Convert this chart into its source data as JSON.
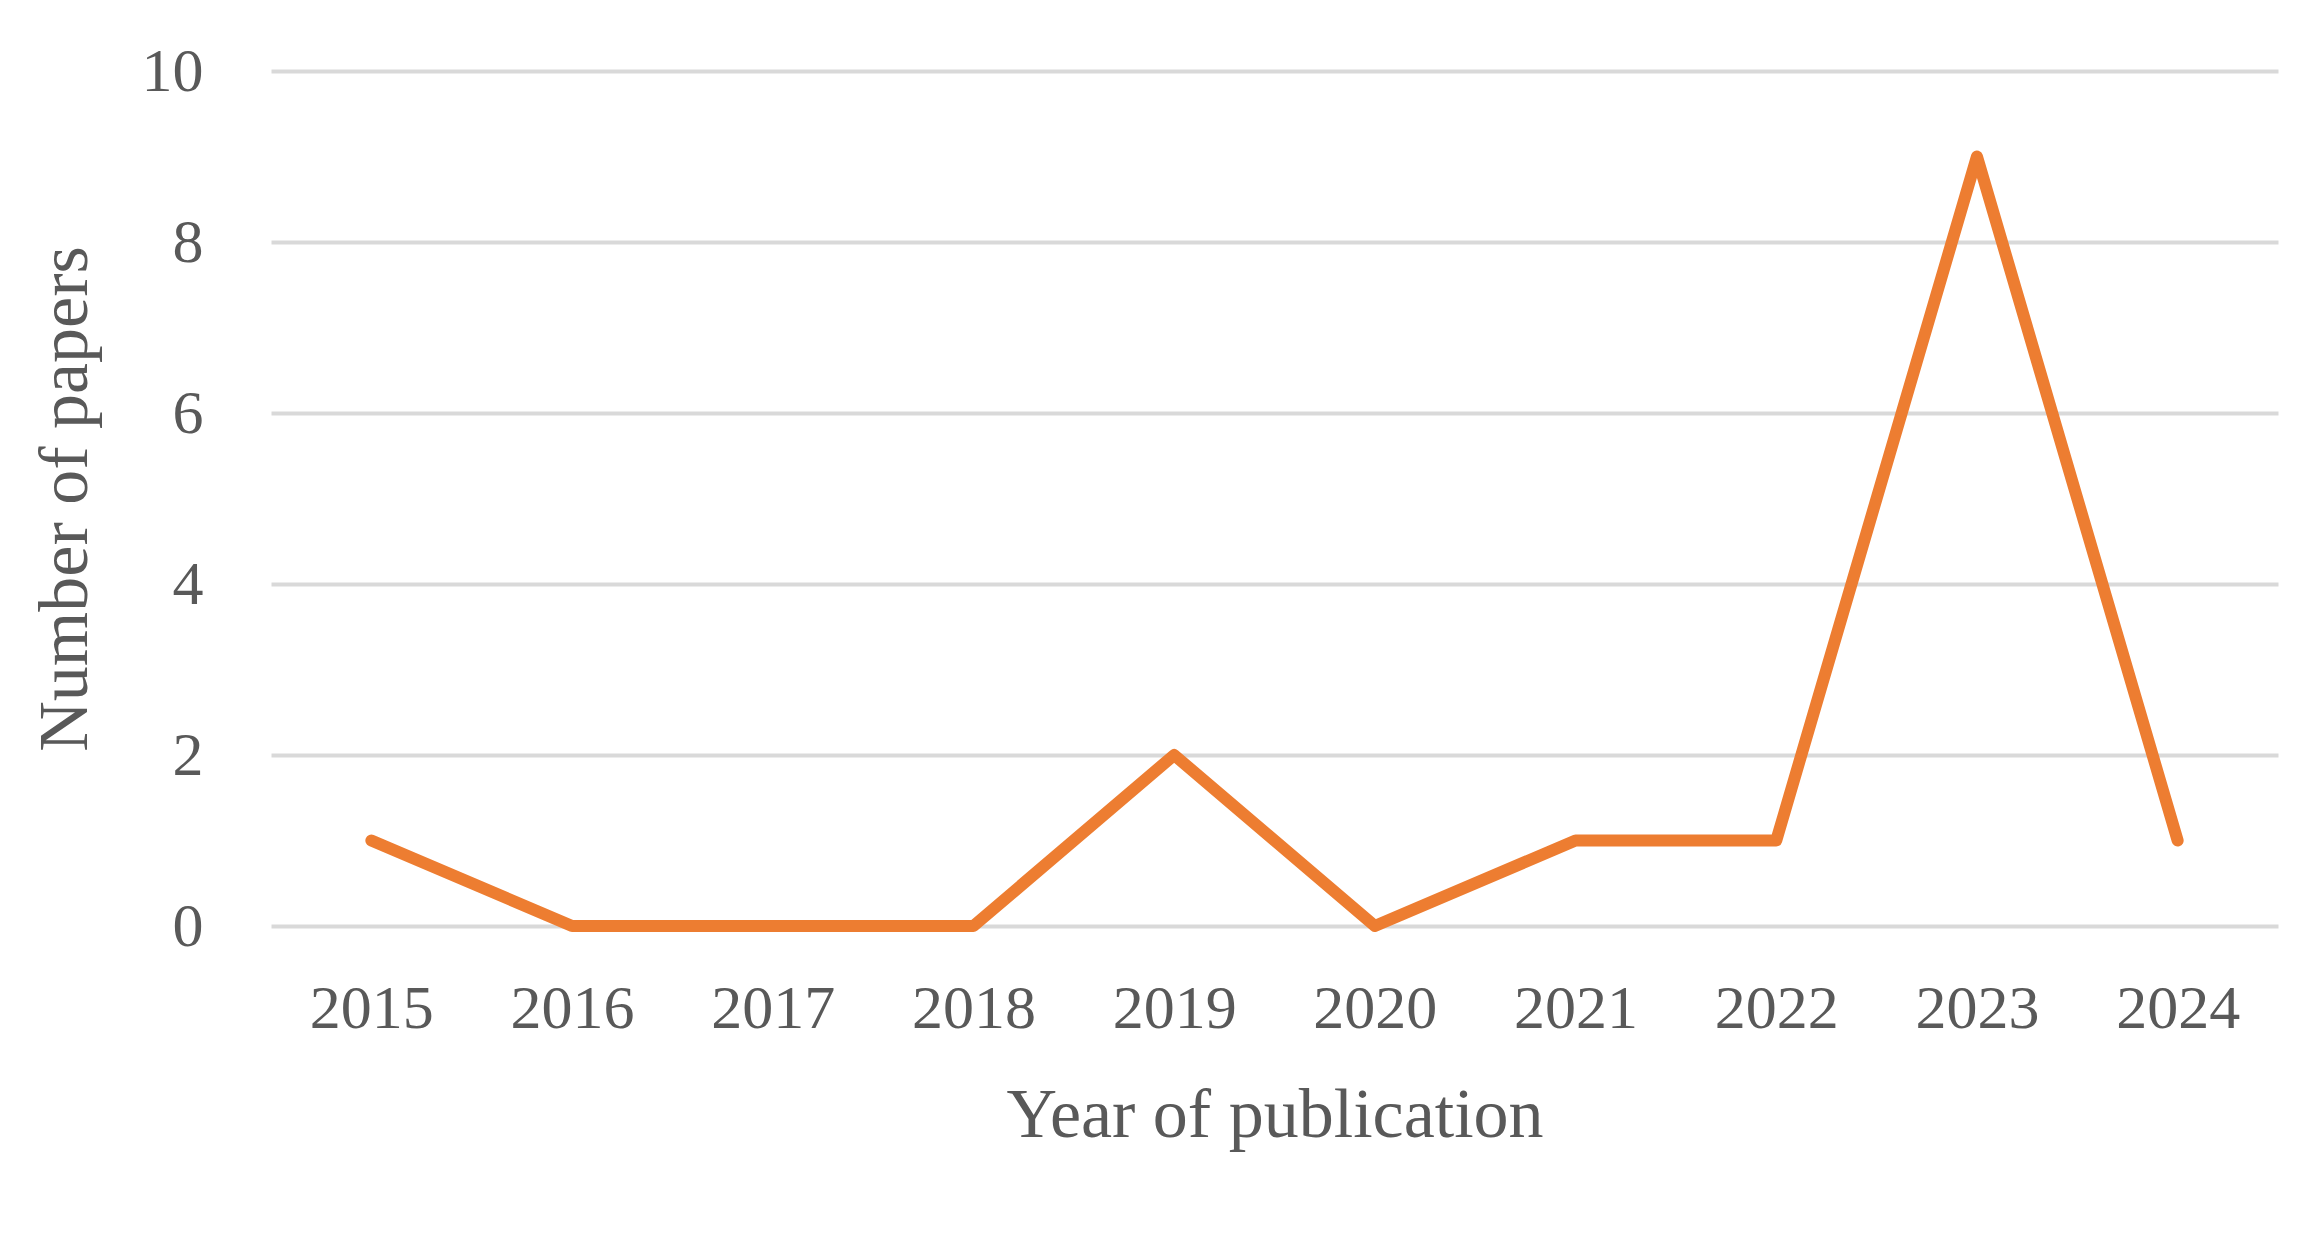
{
  "chart_data": {
    "type": "line",
    "xlabel": "Year of publication",
    "ylabel": "Number of papers",
    "categories": [
      "2015",
      "2016",
      "2017",
      "2018",
      "2019",
      "2020",
      "2021",
      "2022",
      "2023",
      "2024"
    ],
    "values": [
      1,
      0,
      0,
      0,
      2,
      0,
      1,
      1,
      9,
      1
    ],
    "color": "#ed7d31",
    "ylim": [
      0,
      10
    ],
    "yticks": [
      0,
      2,
      4,
      6,
      8,
      10
    ],
    "grid": "y"
  }
}
